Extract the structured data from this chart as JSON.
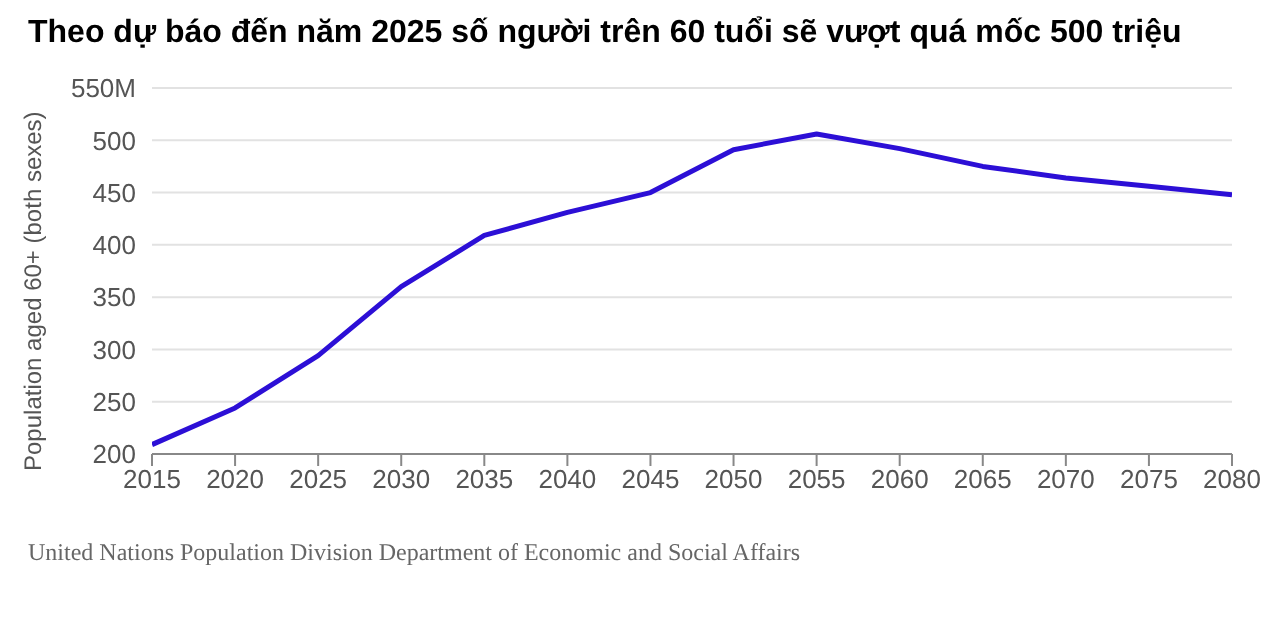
{
  "chart_data": {
    "type": "line",
    "title": "Theo dự báo đến năm 2025 số người trên 60 tuổi sẽ vượt quá mốc 500 triệu",
    "ylabel": "Population aged 60+ (both sexes)",
    "annotations": [
      "United Nations Population Division Department of Economic and Social Affairs"
    ],
    "x": [
      2015,
      2020,
      2025,
      2030,
      2035,
      2040,
      2045,
      2050,
      2055,
      2060,
      2065,
      2070,
      2075,
      2080
    ],
    "series": [
      {
        "color": "#2c0fd6",
        "values": [
          209,
          244,
          294,
          360,
          409,
          431,
          450,
          491,
          506,
          492,
          475,
          464,
          456,
          448
        ]
      }
    ],
    "xlim": [
      2015,
      2080
    ],
    "xticks": [
      2015,
      2020,
      2025,
      2030,
      2035,
      2040,
      2045,
      2050,
      2055,
      2060,
      2065,
      2070,
      2075,
      2080
    ],
    "ylim": [
      200,
      550
    ],
    "yticks": [
      200,
      250,
      300,
      350,
      400,
      450,
      500,
      {
        "value": 550,
        "label": "550M"
      }
    ],
    "grid": "y",
    "legend": false,
    "marker": "none",
    "line_style": "solid"
  }
}
